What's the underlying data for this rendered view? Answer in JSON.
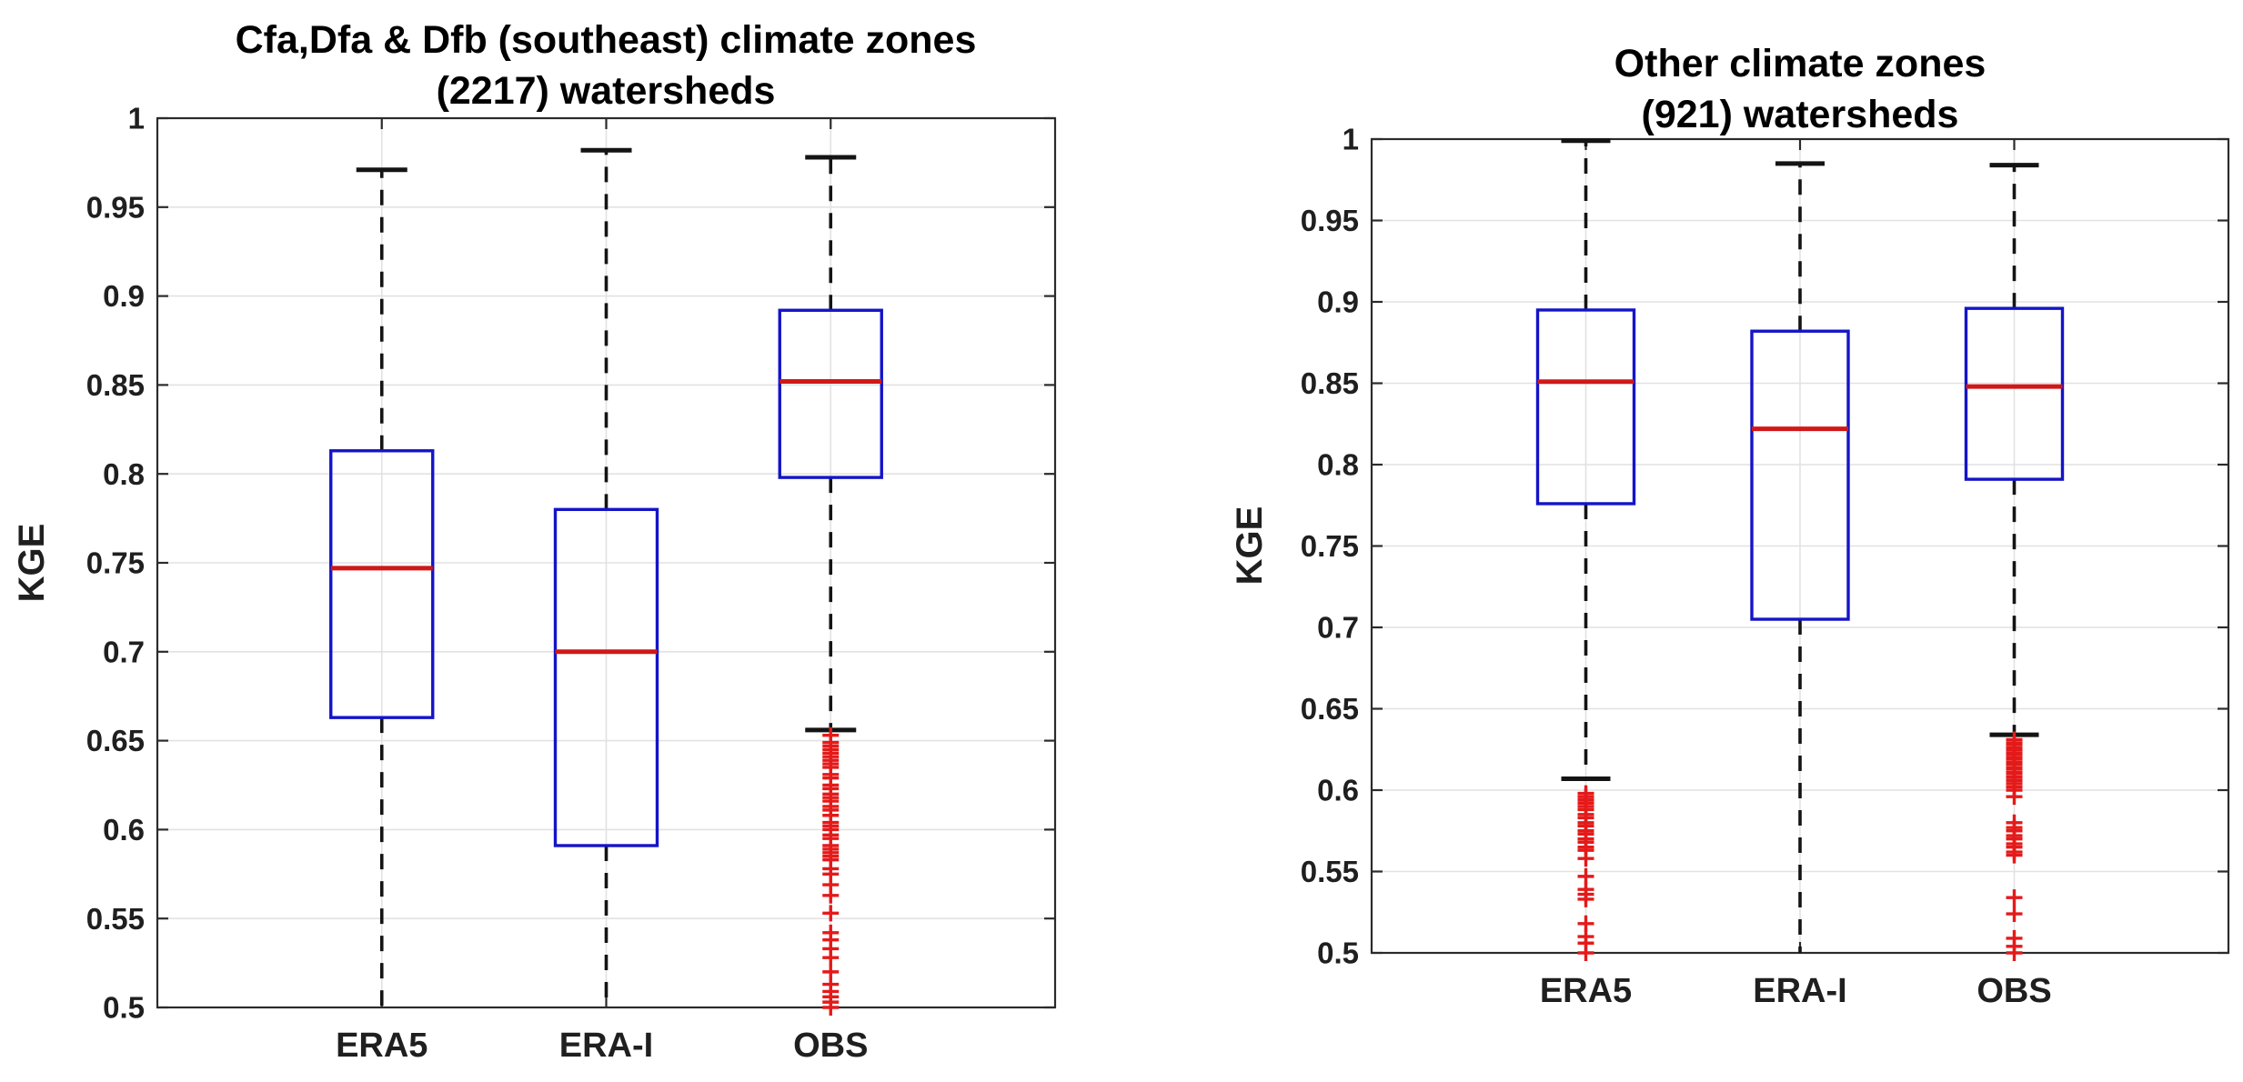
{
  "figure": {
    "background": "#ffffff",
    "y_ticks": {
      "labels": [
        "1",
        "0.95",
        "0.9",
        "0.85",
        "0.8",
        "0.75",
        "0.7",
        "0.65",
        "0.6",
        "0.55",
        "0.5"
      ],
      "values": [
        1.0,
        0.95,
        0.9,
        0.85,
        0.8,
        0.75,
        0.7,
        0.65,
        0.6,
        0.55,
        0.5
      ]
    },
    "colors": {
      "box": "#1414c8",
      "median": "#d01818",
      "whisker": "#141414",
      "cap": "#141414",
      "outlier": "#e41a1a",
      "grid": "#e2e2e2",
      "axis": "#2b2b2b",
      "tick_label": "#1f1f1f",
      "title": "#000000"
    }
  },
  "chart_data": [
    {
      "type": "box",
      "title_line1": "Cfa,Dfa & Dfb (southeast) climate zones",
      "title_line2": "(2217) watersheds",
      "watershed_count": 2217,
      "ylabel": "KGE",
      "ylim": [
        0.5,
        1.0
      ],
      "grid": true,
      "categories": [
        "ERA5",
        "ERA-I",
        "OBS"
      ],
      "series": [
        {
          "name": "ERA5",
          "whisker_high": 0.971,
          "q3": 0.813,
          "median": 0.747,
          "q1": 0.663,
          "whisker_low": null,
          "whisker_low_clipped": true,
          "outliers": []
        },
        {
          "name": "ERA-I",
          "whisker_high": 0.982,
          "q3": 0.78,
          "median": 0.7,
          "q1": 0.591,
          "whisker_low": null,
          "whisker_low_clipped": true,
          "outliers": []
        },
        {
          "name": "OBS",
          "whisker_high": 0.978,
          "q3": 0.892,
          "median": 0.852,
          "q1": 0.798,
          "whisker_low": 0.656,
          "whisker_low_clipped": false,
          "outliers": [
            0.653,
            0.649,
            0.647,
            0.645,
            0.643,
            0.641,
            0.639,
            0.637,
            0.635,
            0.631,
            0.629,
            0.625,
            0.623,
            0.62,
            0.618,
            0.616,
            0.613,
            0.611,
            0.608,
            0.604,
            0.602,
            0.6,
            0.597,
            0.595,
            0.591,
            0.589,
            0.587,
            0.585,
            0.583,
            0.578,
            0.575,
            0.569,
            0.563,
            0.553,
            0.542,
            0.538,
            0.533,
            0.528,
            0.52,
            0.513,
            0.509,
            0.506,
            0.503,
            0.5
          ]
        }
      ]
    },
    {
      "type": "box",
      "title_line1": "Other climate zones",
      "title_line2": "(921) watersheds",
      "watershed_count": 921,
      "ylabel": "KGE",
      "ylim": [
        0.5,
        1.0
      ],
      "grid": true,
      "categories": [
        "ERA5",
        "ERA-I",
        "OBS"
      ],
      "series": [
        {
          "name": "ERA5",
          "whisker_high": 0.999,
          "q3": 0.895,
          "median": 0.851,
          "q1": 0.776,
          "whisker_low": 0.607,
          "whisker_low_clipped": false,
          "outliers": [
            0.598,
            0.596,
            0.594,
            0.592,
            0.59,
            0.588,
            0.585,
            0.583,
            0.58,
            0.578,
            0.575,
            0.573,
            0.57,
            0.568,
            0.565,
            0.563,
            0.558,
            0.547,
            0.539,
            0.536,
            0.533,
            0.518,
            0.51,
            0.506,
            0.5
          ]
        },
        {
          "name": "ERA-I",
          "whisker_high": 0.985,
          "q3": 0.882,
          "median": 0.822,
          "q1": 0.705,
          "whisker_low": null,
          "whisker_low_clipped": true,
          "outliers": []
        },
        {
          "name": "OBS",
          "whisker_high": 0.984,
          "q3": 0.896,
          "median": 0.848,
          "q1": 0.791,
          "whisker_low": 0.634,
          "whisker_low_clipped": false,
          "outliers": [
            0.631,
            0.629,
            0.628,
            0.626,
            0.625,
            0.623,
            0.622,
            0.62,
            0.619,
            0.617,
            0.616,
            0.614,
            0.613,
            0.611,
            0.61,
            0.608,
            0.606,
            0.604,
            0.602,
            0.6,
            0.596,
            0.58,
            0.577,
            0.575,
            0.572,
            0.57,
            0.567,
            0.565,
            0.562,
            0.56,
            0.534,
            0.524,
            0.509,
            0.504,
            0.5
          ]
        }
      ]
    }
  ]
}
